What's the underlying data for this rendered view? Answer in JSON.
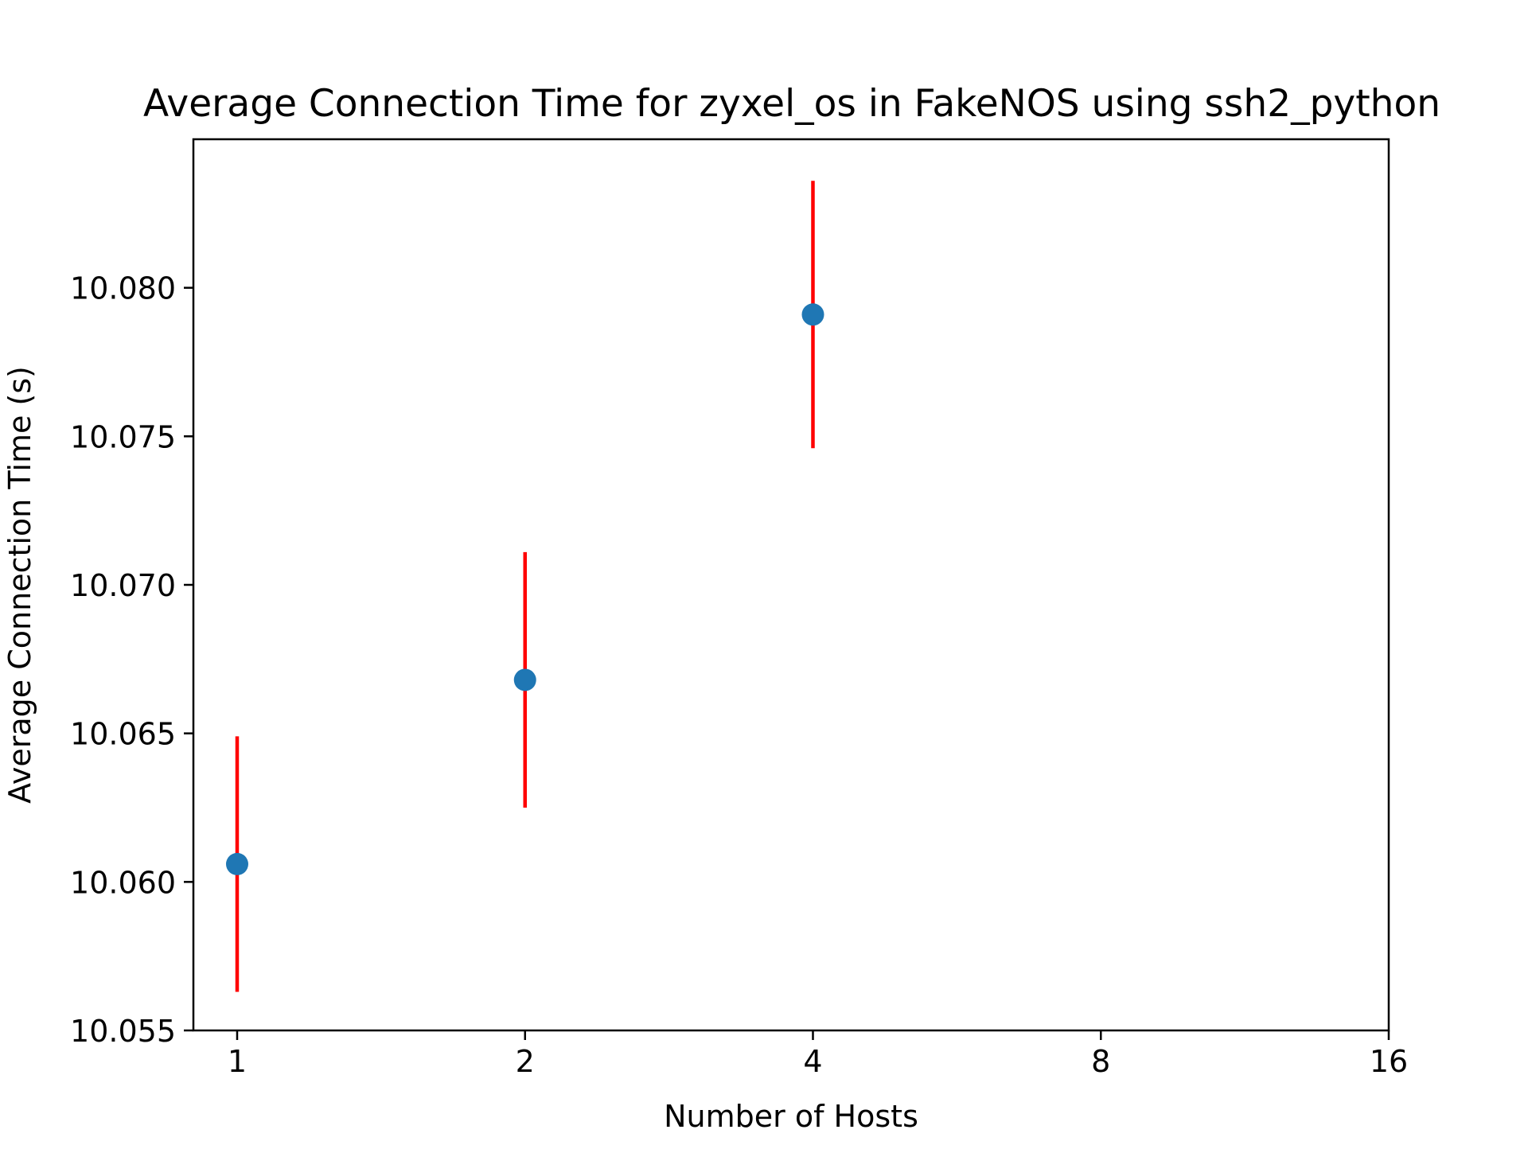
{
  "chart_data": {
    "type": "scatter",
    "title": "Average Connection Time for zyxel_os in FakeNOS using ssh2_python",
    "xlabel": "Number of Hosts",
    "ylabel": "Average Connection Time (s)",
    "x_scale": "log2",
    "xlim": [
      0.9,
      16
    ],
    "ylim": [
      10.055,
      10.085
    ],
    "x_ticks": [
      1,
      2,
      4,
      8,
      16
    ],
    "x_tick_labels": [
      "1",
      "2",
      "4",
      "8",
      "16"
    ],
    "y_ticks": [
      10.055,
      10.06,
      10.065,
      10.07,
      10.075,
      10.08
    ],
    "y_tick_labels": [
      "10.055",
      "10.060",
      "10.065",
      "10.070",
      "10.075",
      "10.080"
    ],
    "grid": false,
    "points": [
      {
        "x": 1,
        "y": 10.0606,
        "yerr": 0.0043
      },
      {
        "x": 2,
        "y": 10.0668,
        "yerr": 0.0043
      },
      {
        "x": 4,
        "y": 10.0791,
        "yerr": 0.0045
      }
    ],
    "marker_color": "#1f77b4",
    "errorbar_color": "#ff0000"
  }
}
